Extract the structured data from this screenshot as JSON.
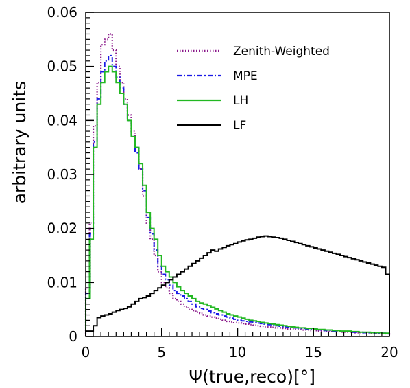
{
  "chart_data": {
    "type": "line",
    "xlabel": "Ψ(true,reco)[°]",
    "ylabel": "arbitrary units",
    "xlim": [
      0,
      20
    ],
    "ylim": [
      0,
      0.06
    ],
    "x_ticks": [
      0,
      5,
      10,
      15,
      20
    ],
    "x_tick_labels": [
      "0",
      "5",
      "10",
      "15",
      "20"
    ],
    "y_ticks": [
      0,
      0.01,
      0.02,
      0.03,
      0.04,
      0.05,
      0.06
    ],
    "y_tick_labels": [
      "0",
      "0.01",
      "0.02",
      "0.03",
      "0.04",
      "0.05",
      "0.06"
    ],
    "grid": false,
    "legend_position": "top-right",
    "bin_width": 0.25,
    "series": [
      {
        "name": "Zenith-Weighted",
        "color": "#8b1a8b",
        "style": "dotted",
        "values": [
          0.009,
          0.021,
          0.039,
          0.047,
          0.054,
          0.055,
          0.056,
          0.053,
          0.05,
          0.047,
          0.044,
          0.041,
          0.038,
          0.035,
          0.031,
          0.026,
          0.021,
          0.018,
          0.015,
          0.012,
          0.01,
          0.009,
          0.008,
          0.007,
          0.0065,
          0.006,
          0.0055,
          0.005,
          0.0048,
          0.0045,
          0.0043,
          0.004,
          0.0038,
          0.0036,
          0.0034,
          0.0032,
          0.003,
          0.0028,
          0.0027,
          0.0026,
          0.0025,
          0.0024,
          0.0023,
          0.0022,
          0.0021,
          0.002,
          0.0019,
          0.0018,
          0.0018,
          0.0017,
          0.0016,
          0.0016,
          0.0015,
          0.0014,
          0.0014,
          0.0013,
          0.0013,
          0.0012,
          0.0012,
          0.0011,
          0.0011,
          0.001,
          0.001,
          0.001,
          0.0009,
          0.0009,
          0.0009,
          0.0008,
          0.0008,
          0.0008,
          0.0008,
          0.0007,
          0.0007,
          0.0007,
          0.0007,
          0.0006,
          0.0006,
          0.0006,
          0.0006,
          0.0005
        ]
      },
      {
        "name": "MPE",
        "color": "#1a1ae6",
        "style": "dashdot",
        "values": [
          0.008,
          0.019,
          0.036,
          0.044,
          0.049,
          0.051,
          0.052,
          0.05,
          0.048,
          0.046,
          0.043,
          0.04,
          0.037,
          0.034,
          0.031,
          0.027,
          0.022,
          0.019,
          0.016,
          0.013,
          0.0115,
          0.0105,
          0.0095,
          0.0085,
          0.008,
          0.0075,
          0.007,
          0.0065,
          0.006,
          0.0055,
          0.0052,
          0.005,
          0.0047,
          0.0044,
          0.0042,
          0.004,
          0.0038,
          0.0036,
          0.0034,
          0.0032,
          0.003,
          0.0029,
          0.0028,
          0.0027,
          0.0026,
          0.0025,
          0.0024,
          0.0023,
          0.0022,
          0.0021,
          0.002,
          0.0019,
          0.0018,
          0.0017,
          0.0017,
          0.0016,
          0.0015,
          0.0015,
          0.0014,
          0.0014,
          0.0013,
          0.0012,
          0.0012,
          0.0011,
          0.0011,
          0.001,
          0.001,
          0.0009,
          0.0009,
          0.0009,
          0.0008,
          0.0008,
          0.0008,
          0.0007,
          0.0007,
          0.0007,
          0.0006,
          0.0006,
          0.0006,
          0.0005
        ]
      },
      {
        "name": "LH",
        "color": "#22b822",
        "style": "solid",
        "values": [
          0.007,
          0.018,
          0.035,
          0.043,
          0.047,
          0.049,
          0.05,
          0.049,
          0.047,
          0.045,
          0.043,
          0.04,
          0.037,
          0.035,
          0.032,
          0.028,
          0.023,
          0.02,
          0.018,
          0.015,
          0.013,
          0.012,
          0.011,
          0.01,
          0.0092,
          0.0085,
          0.008,
          0.0075,
          0.007,
          0.0065,
          0.0062,
          0.006,
          0.0057,
          0.0054,
          0.0051,
          0.0048,
          0.0045,
          0.0042,
          0.004,
          0.0038,
          0.0036,
          0.0034,
          0.0032,
          0.003,
          0.0029,
          0.0028,
          0.0026,
          0.0025,
          0.0024,
          0.0023,
          0.0022,
          0.0021,
          0.002,
          0.0019,
          0.0018,
          0.0017,
          0.0016,
          0.0016,
          0.0015,
          0.0015,
          0.0014,
          0.0013,
          0.0013,
          0.0012,
          0.0012,
          0.0011,
          0.0011,
          0.001,
          0.001,
          0.001,
          0.0009,
          0.0009,
          0.0008,
          0.0008,
          0.0008,
          0.0007,
          0.0007,
          0.0007,
          0.0006,
          0.0006
        ]
      },
      {
        "name": "LF",
        "color": "#000000",
        "style": "solid",
        "values": [
          0.001,
          0.001,
          0.002,
          0.0035,
          0.0038,
          0.004,
          0.0042,
          0.0045,
          0.0048,
          0.005,
          0.0052,
          0.0055,
          0.006,
          0.0065,
          0.007,
          0.0072,
          0.0075,
          0.008,
          0.0085,
          0.009,
          0.0095,
          0.01,
          0.0105,
          0.011,
          0.0115,
          0.012,
          0.0125,
          0.013,
          0.0135,
          0.014,
          0.0145,
          0.015,
          0.0155,
          0.016,
          0.0158,
          0.0162,
          0.0165,
          0.0168,
          0.017,
          0.0172,
          0.0175,
          0.0177,
          0.0179,
          0.018,
          0.0182,
          0.0184,
          0.0185,
          0.0186,
          0.0185,
          0.0184,
          0.0183,
          0.0182,
          0.018,
          0.0178,
          0.0176,
          0.0174,
          0.0172,
          0.017,
          0.0168,
          0.0166,
          0.0164,
          0.0162,
          0.016,
          0.0158,
          0.0156,
          0.0154,
          0.0152,
          0.015,
          0.0148,
          0.0146,
          0.0144,
          0.0142,
          0.014,
          0.0138,
          0.0136,
          0.0134,
          0.0132,
          0.013,
          0.0128,
          0.0115
        ]
      }
    ]
  }
}
